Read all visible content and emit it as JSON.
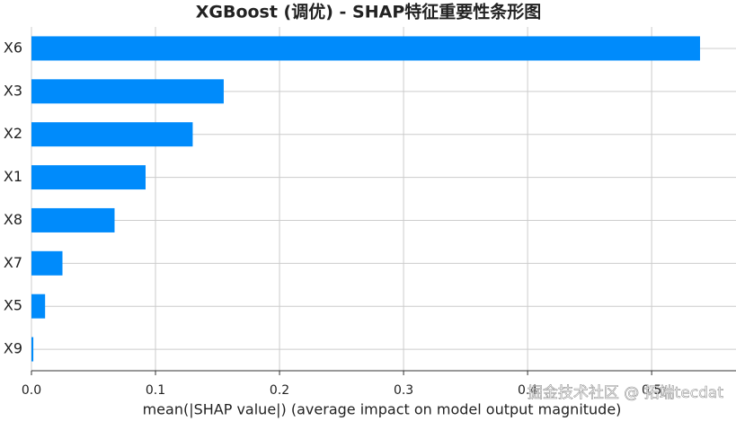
{
  "chart_data": {
    "type": "hbar",
    "title": "XGBoost (调优) - SHAP特征重要性条形图",
    "x_label": "mean(|SHAP value|) (average impact on model output magnitude)",
    "categories": [
      "X6",
      "X3",
      "X2",
      "X1",
      "X8",
      "X7",
      "X5",
      "X9"
    ],
    "values": [
      0.539,
      0.155,
      0.13,
      0.092,
      0.067,
      0.025,
      0.011,
      0.0015
    ],
    "color": "#008bfb",
    "xlim": [
      0,
      0.568
    ],
    "xticks": [
      {
        "value": 0,
        "label": "0.0"
      },
      0.1,
      0.2,
      0.3,
      0.4,
      0.5
    ],
    "grid": true,
    "watermark": "掘金技术社区 @ 拓端tecdat"
  }
}
